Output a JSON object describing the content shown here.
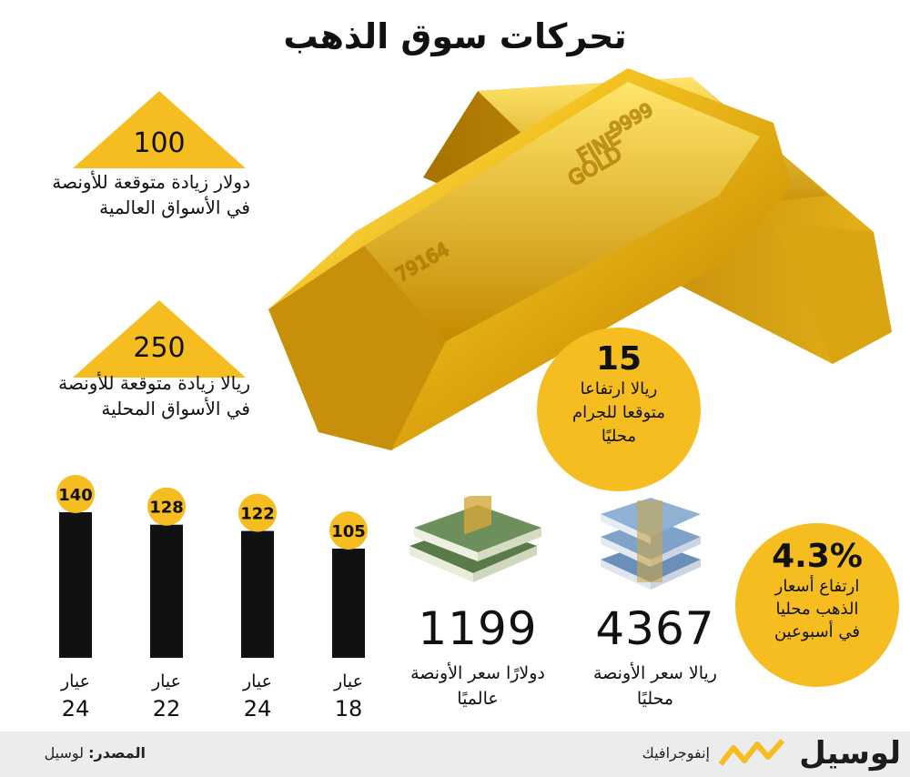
{
  "title": "تحركات سوق الذهب",
  "annotations": {
    "global": {
      "value": "100",
      "line1": "دولار زيادة متوقعة للأونصة",
      "line2": "في الأسواق العالمية"
    },
    "local": {
      "value": "250",
      "line1": "ريالا زيادة متوقعة للأونصة",
      "line2": "في الأسواق المحلية"
    }
  },
  "gram_circle": {
    "value": "15",
    "line1": "ريالا ارتفاعا",
    "line2": "متوقعا للجرام",
    "line3": "محليًا"
  },
  "weekly_circle": {
    "value": "4.3%",
    "line1": "ارتفاع أسعار",
    "line2": "الذهب محليا",
    "line3": "في أسبوعين"
  },
  "prices": {
    "usd": {
      "value": "1199",
      "line1": "دولارًا سعر الأونصة",
      "line2": "عالميًا"
    },
    "qar": {
      "value": "4367",
      "line1": "ريالا سعر الأونصة",
      "line2": "محليًا"
    }
  },
  "bar_karat_word": "عيار",
  "chart_data": {
    "type": "bar",
    "categories": [
      "24",
      "22",
      "24",
      "18"
    ],
    "values": [
      140,
      128,
      122,
      105
    ],
    "value_labels": [
      "140",
      "128",
      "122",
      "105"
    ],
    "ylim": [
      0,
      140
    ],
    "title": "",
    "xlabel": "",
    "ylabel": "",
    "grid": false,
    "bar_color": "#111111",
    "label_circle_color": "#f5bd1f"
  },
  "footer": {
    "source_label": "المصدر:",
    "source_value": "لوسيل",
    "section": "إنفوجرافيك",
    "logo": "لوسيل"
  },
  "colors": {
    "accent": "#f5bd1f",
    "gold_dark": "#b8860b",
    "footer_bg": "#ececec"
  }
}
